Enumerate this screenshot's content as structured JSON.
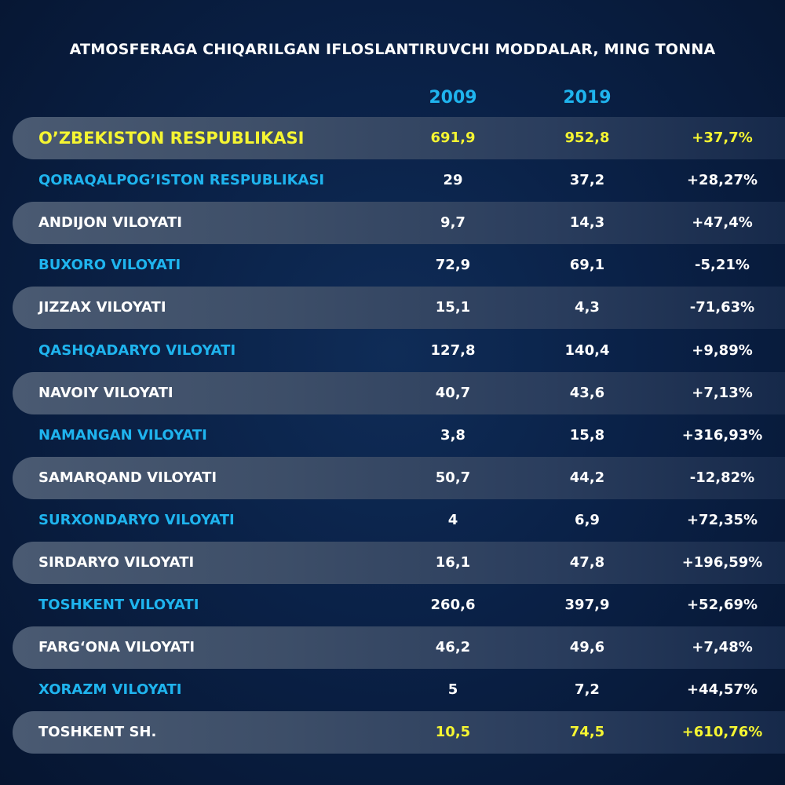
{
  "chart_data": {
    "type": "table",
    "title": "ATMOSFERAGA CHIQARILGAN IFLOSLANTIRUVCHI MODDALAR, MING TONNA",
    "columns": [
      "2009",
      "2019"
    ],
    "rows": [
      {
        "name": "O’ZBEKISTON RESPUBLIKASI",
        "v2009": "691,9",
        "v2019": "952,8",
        "change": "+37,7%"
      },
      {
        "name": "QORAQALPOG’ISTON RESPUBLIKASI",
        "v2009": "29",
        "v2019": "37,2",
        "change": "+28,27%"
      },
      {
        "name": "ANDIJON VILOYATI",
        "v2009": "9,7",
        "v2019": "14,3",
        "change": "+47,4%"
      },
      {
        "name": "BUXORO VILOYATI",
        "v2009": "72,9",
        "v2019": "69,1",
        "change": "-5,21%"
      },
      {
        "name": "JIZZAX VILOYATI",
        "v2009": "15,1",
        "v2019": "4,3",
        "change": "-71,63%"
      },
      {
        "name": "QASHQADARYO VILOYATI",
        "v2009": "127,8",
        "v2019": "140,4",
        "change": "+9,89%"
      },
      {
        "name": "NAVOIY VILOYATI",
        "v2009": "40,7",
        "v2019": "43,6",
        "change": "+7,13%"
      },
      {
        "name": "NAMANGAN VILOYATI",
        "v2009": "3,8",
        "v2019": "15,8",
        "change": "+316,93%"
      },
      {
        "name": "SAMARQAND VILOYATI",
        "v2009": "50,7",
        "v2019": "44,2",
        "change": "-12,82%"
      },
      {
        "name": "SURXONDARYO VILOYATI",
        "v2009": "4",
        "v2019": "6,9",
        "change": "+72,35%"
      },
      {
        "name": "SIRDARYO VILOYATI",
        "v2009": "16,1",
        "v2019": "47,8",
        "change": "+196,59%"
      },
      {
        "name": "TOSHKENT VILOYATI",
        "v2009": "260,6",
        "v2019": "397,9",
        "change": "+52,69%"
      },
      {
        "name": "FARG‘ONA VILOYATI",
        "v2009": "46,2",
        "v2019": "49,6",
        "change": "+7,48%"
      },
      {
        "name": "XORAZM VILOYATI",
        "v2009": "5",
        "v2019": "7,2",
        "change": "+44,57%"
      },
      {
        "name": "TOSHKENT SH.",
        "v2009": "10,5",
        "v2019": "74,5",
        "change": "+610,76%"
      }
    ]
  },
  "colors": {
    "accent_blue": "#1fb4ee",
    "highlight_yellow": "#f5f532",
    "text_white": "#ffffff",
    "background": "#0a2147"
  }
}
